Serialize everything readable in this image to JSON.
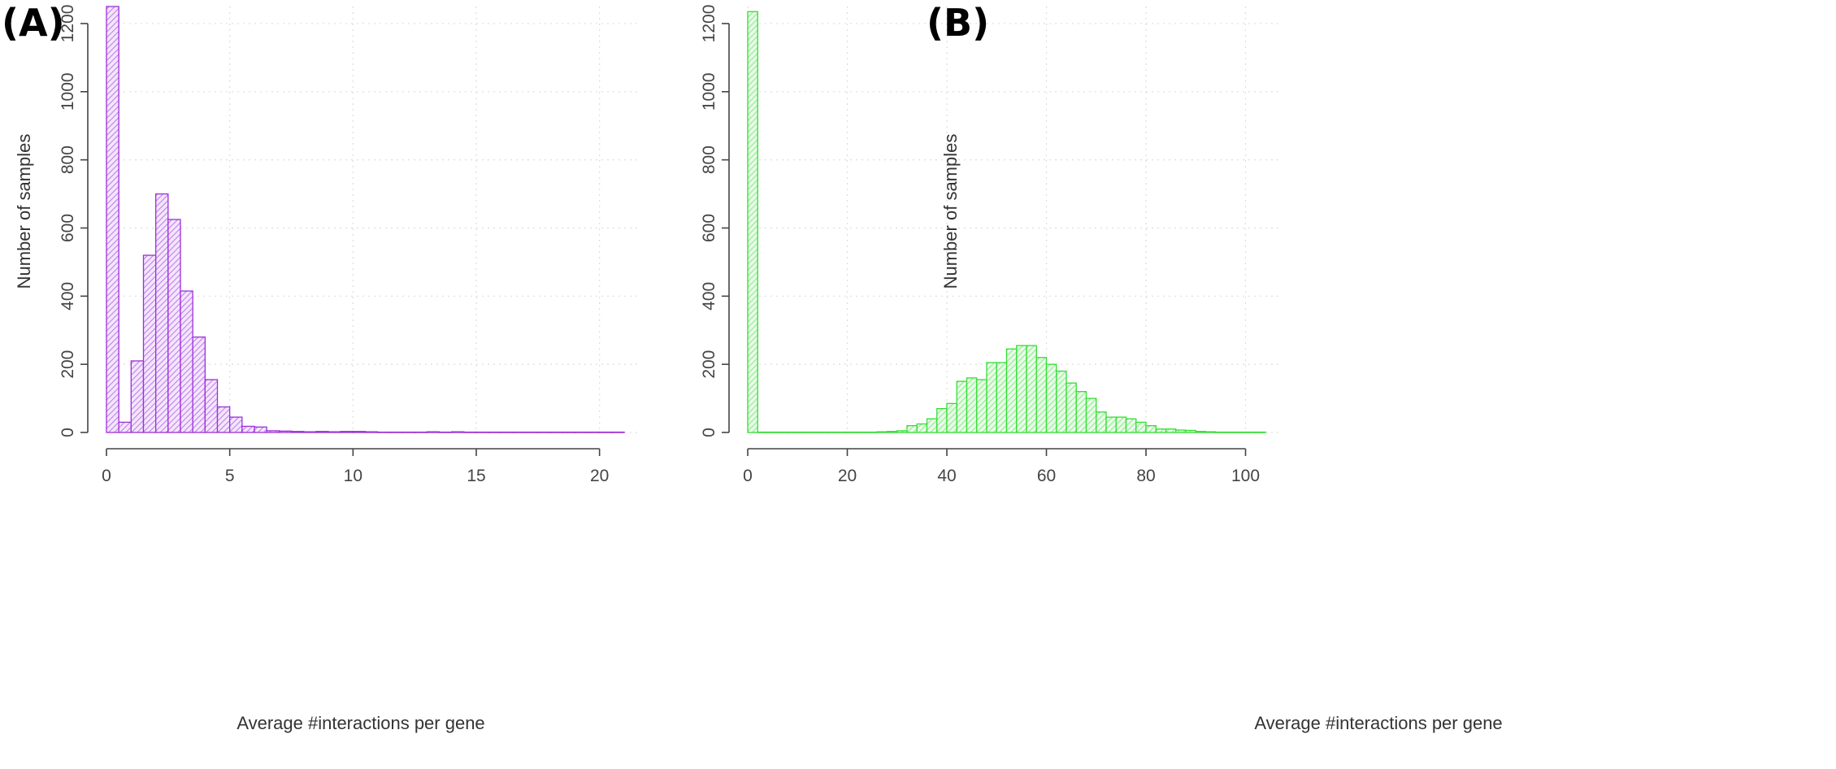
{
  "chart_data": [
    {
      "panel_label": "(A)",
      "type": "bar",
      "title": "",
      "xlabel": "Average #interactions per gene",
      "ylabel": "Number of samples",
      "bin_width": 0.5,
      "xlim": [
        0,
        21
      ],
      "ylim": [
        0,
        1250
      ],
      "xticks": [
        0,
        5,
        10,
        15,
        20
      ],
      "yticks": [
        0,
        200,
        400,
        600,
        800,
        1000,
        1200
      ],
      "grid": true,
      "color": "#9b30d9",
      "hatch_color": "#c080ee",
      "values": [
        1250,
        30,
        210,
        520,
        700,
        625,
        415,
        280,
        155,
        75,
        45,
        18,
        16,
        5,
        4,
        3,
        2,
        3,
        2,
        3,
        3,
        2,
        1,
        1,
        1,
        1,
        2,
        1,
        2,
        1,
        1,
        1,
        1,
        1,
        1,
        1,
        1,
        1,
        1,
        1,
        1,
        1
      ]
    },
    {
      "panel_label": "(B)",
      "type": "bar",
      "title": "",
      "xlabel": "Average #interactions per gene",
      "ylabel": "Number of samples",
      "bin_width": 2,
      "xlim": [
        0,
        104
      ],
      "ylim": [
        0,
        1250
      ],
      "xticks": [
        0,
        20,
        40,
        60,
        80,
        100
      ],
      "yticks": [
        0,
        200,
        400,
        600,
        800,
        1000,
        1200
      ],
      "grid": true,
      "color": "#33dd33",
      "hatch_color": "#88ee88",
      "values": [
        1235,
        1,
        1,
        1,
        1,
        1,
        1,
        1,
        1,
        1,
        1,
        1,
        1,
        2,
        3,
        5,
        20,
        25,
        40,
        70,
        85,
        150,
        160,
        155,
        205,
        205,
        245,
        255,
        255,
        220,
        200,
        180,
        145,
        120,
        100,
        60,
        45,
        45,
        40,
        30,
        20,
        10,
        10,
        7,
        6,
        3,
        2,
        1,
        1,
        1,
        1,
        1
      ]
    }
  ]
}
